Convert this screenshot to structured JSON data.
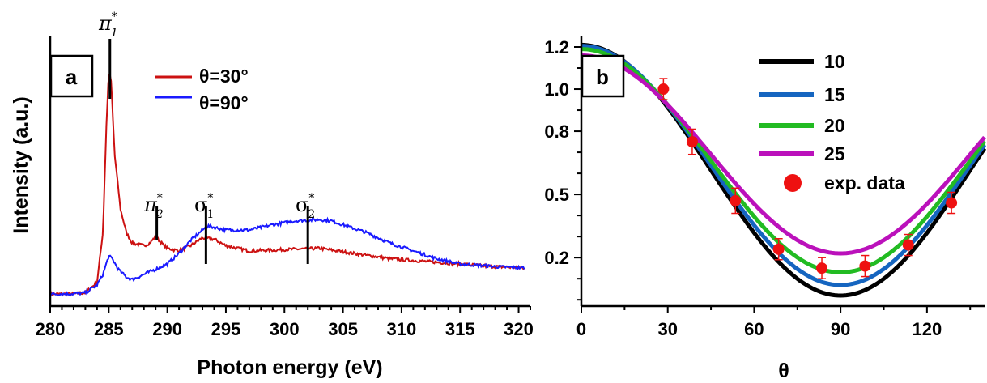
{
  "panels": {
    "a": {
      "label": "a",
      "ylabel": "Intensity (a.u.)",
      "xlabel": "Photon energy (eV)",
      "legend": [
        "θ=30°",
        "θ=90°"
      ],
      "peaks": [
        {
          "greek": "π",
          "sub": "1",
          "sup": "*"
        },
        {
          "greek": "π",
          "sub": "2",
          "sup": "*"
        },
        {
          "greek": "σ",
          "sub": "1",
          "sup": "*"
        },
        {
          "greek": "σ",
          "sub": "2",
          "sup": "*"
        }
      ]
    },
    "b": {
      "label": "b",
      "xlabel": "θ",
      "legend": [
        "10",
        "15",
        "20",
        "25",
        "exp. data"
      ]
    }
  },
  "chart_data": [
    {
      "type": "line",
      "xlabel": "Photon energy (eV)",
      "ylabel": "Intensity (a.u.)",
      "xlim": [
        280,
        321
      ],
      "ylim": [
        0,
        1.0
      ],
      "xticks": [
        280,
        285,
        290,
        295,
        300,
        305,
        310,
        315,
        320
      ],
      "yticks_shown": false,
      "colors": {
        "θ=30°": "#cc1111",
        "θ=90°": "#1a1aff"
      },
      "peak_markers": [
        {
          "label": "π1*",
          "x": 285.1
        },
        {
          "label": "π2*",
          "x": 289.1
        },
        {
          "label": "σ1*",
          "x": 293.3
        },
        {
          "label": "σ2*",
          "x": 302.0
        }
      ],
      "series": [
        {
          "name": "θ=30°",
          "x": [
            280,
            282,
            283,
            284,
            284.5,
            284.8,
            285.0,
            285.2,
            285.5,
            286.0,
            286.5,
            287,
            288,
            288.5,
            289.0,
            289.5,
            290,
            291,
            292,
            293,
            294,
            295,
            297,
            300,
            303,
            306,
            309,
            312,
            315,
            318,
            320.5
          ],
          "y": [
            0.015,
            0.016,
            0.02,
            0.06,
            0.25,
            0.66,
            0.86,
            0.83,
            0.55,
            0.34,
            0.25,
            0.21,
            0.2,
            0.21,
            0.235,
            0.21,
            0.19,
            0.18,
            0.2,
            0.23,
            0.225,
            0.2,
            0.18,
            0.185,
            0.19,
            0.17,
            0.15,
            0.14,
            0.13,
            0.12,
            0.115
          ]
        },
        {
          "name": "θ=90°",
          "x": [
            280,
            282,
            283,
            284,
            284.5,
            285.0,
            285.3,
            285.8,
            286.5,
            287,
            288,
            289,
            290,
            291,
            292,
            293,
            293.5,
            294,
            295,
            297,
            299,
            301,
            303,
            304,
            305,
            307,
            309,
            311,
            313,
            315,
            318,
            320.5
          ],
          "y": [
            0.015,
            0.016,
            0.02,
            0.05,
            0.09,
            0.16,
            0.15,
            0.11,
            0.08,
            0.07,
            0.09,
            0.11,
            0.13,
            0.17,
            0.22,
            0.26,
            0.275,
            0.27,
            0.26,
            0.26,
            0.28,
            0.295,
            0.3,
            0.295,
            0.28,
            0.25,
            0.21,
            0.18,
            0.15,
            0.13,
            0.12,
            0.115
          ]
        }
      ]
    },
    {
      "type": "line",
      "xlabel": "θ",
      "ylabel": "",
      "xlim": [
        0,
        140
      ],
      "ylim": [
        -0.03,
        1.25
      ],
      "xticks": [
        0,
        30,
        60,
        90,
        120
      ],
      "yticks": [
        0.2,
        0.5,
        0.8,
        1.0,
        1.2
      ],
      "colors": {
        "10": "#000000",
        "15": "#1565c0",
        "20": "#22bb22",
        "25": "#bb11bb",
        "exp. data": "#ee1111"
      },
      "series": [
        {
          "name": "10",
          "model": "cos2",
          "min": 0.02,
          "max": 1.21
        },
        {
          "name": "15",
          "model": "cos2",
          "min": 0.07,
          "max": 1.205
        },
        {
          "name": "20",
          "model": "cos2",
          "min": 0.13,
          "max": 1.19
        },
        {
          "name": "25",
          "model": "cos2",
          "min": 0.22,
          "max": 1.16
        }
      ],
      "exp_data": {
        "name": "exp. data",
        "x": [
          28.5,
          38.5,
          53.5,
          68.5,
          83.5,
          98.5,
          113.5,
          128.5
        ],
        "y": [
          1.0,
          0.75,
          0.47,
          0.24,
          0.15,
          0.16,
          0.26,
          0.46
        ],
        "yerr": [
          0.05,
          0.06,
          0.06,
          0.05,
          0.05,
          0.05,
          0.05,
          0.05
        ]
      }
    }
  ]
}
